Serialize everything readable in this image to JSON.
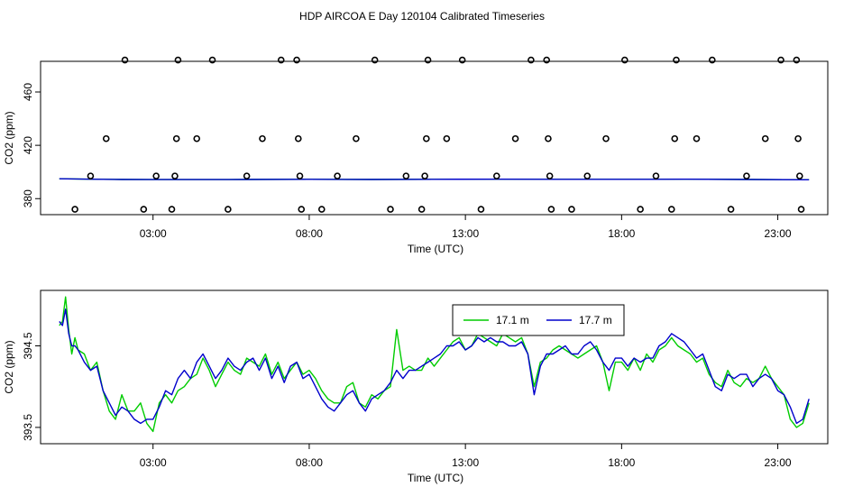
{
  "title": "HDP AIRCOA E  Day 120104  Calibrated Timeseries",
  "chart_data": [
    {
      "type": "scatter",
      "xlabel": "Time (UTC)",
      "ylabel": "CO2 (ppm)",
      "x_unit": "hours UTC",
      "x_ticks": [
        3,
        8,
        13,
        18,
        23
      ],
      "x_tick_labels": [
        "03:00",
        "08:00",
        "13:00",
        "18:00",
        "23:00"
      ],
      "xlim": [
        -0.6,
        24.6
      ],
      "y_ticks": [
        380,
        420,
        460
      ],
      "y_tick_labels": [
        "380",
        "420",
        "460"
      ],
      "ylim": [
        368,
        483
      ],
      "grid": false,
      "points": [
        {
          "x": 0.5,
          "y": 372
        },
        {
          "x": 1.0,
          "y": 397
        },
        {
          "x": 1.5,
          "y": 425
        },
        {
          "x": 2.1,
          "y": 484
        },
        {
          "x": 2.7,
          "y": 372
        },
        {
          "x": 3.1,
          "y": 397
        },
        {
          "x": 3.6,
          "y": 372
        },
        {
          "x": 3.7,
          "y": 397
        },
        {
          "x": 3.75,
          "y": 425
        },
        {
          "x": 3.8,
          "y": 484
        },
        {
          "x": 4.4,
          "y": 425
        },
        {
          "x": 4.9,
          "y": 484
        },
        {
          "x": 5.4,
          "y": 372
        },
        {
          "x": 6.0,
          "y": 397
        },
        {
          "x": 6.5,
          "y": 425
        },
        {
          "x": 7.1,
          "y": 484
        },
        {
          "x": 7.6,
          "y": 484
        },
        {
          "x": 7.65,
          "y": 425
        },
        {
          "x": 7.7,
          "y": 397
        },
        {
          "x": 7.75,
          "y": 372
        },
        {
          "x": 8.4,
          "y": 372
        },
        {
          "x": 8.9,
          "y": 397
        },
        {
          "x": 9.5,
          "y": 425
        },
        {
          "x": 10.1,
          "y": 484
        },
        {
          "x": 10.6,
          "y": 372
        },
        {
          "x": 11.1,
          "y": 397
        },
        {
          "x": 11.6,
          "y": 372
        },
        {
          "x": 11.7,
          "y": 397
        },
        {
          "x": 11.75,
          "y": 425
        },
        {
          "x": 11.8,
          "y": 484
        },
        {
          "x": 12.4,
          "y": 425
        },
        {
          "x": 12.9,
          "y": 484
        },
        {
          "x": 13.5,
          "y": 372
        },
        {
          "x": 14.0,
          "y": 397
        },
        {
          "x": 14.6,
          "y": 425
        },
        {
          "x": 15.1,
          "y": 484
        },
        {
          "x": 15.6,
          "y": 484
        },
        {
          "x": 15.65,
          "y": 425
        },
        {
          "x": 15.7,
          "y": 397
        },
        {
          "x": 15.75,
          "y": 372
        },
        {
          "x": 16.4,
          "y": 372
        },
        {
          "x": 16.9,
          "y": 397
        },
        {
          "x": 17.5,
          "y": 425
        },
        {
          "x": 18.1,
          "y": 484
        },
        {
          "x": 18.6,
          "y": 372
        },
        {
          "x": 19.1,
          "y": 397
        },
        {
          "x": 19.6,
          "y": 372
        },
        {
          "x": 19.7,
          "y": 425
        },
        {
          "x": 19.75,
          "y": 484
        },
        {
          "x": 20.4,
          "y": 425
        },
        {
          "x": 20.9,
          "y": 484
        },
        {
          "x": 21.5,
          "y": 372
        },
        {
          "x": 22.0,
          "y": 397
        },
        {
          "x": 22.6,
          "y": 425
        },
        {
          "x": 23.1,
          "y": 484
        },
        {
          "x": 23.6,
          "y": 484
        },
        {
          "x": 23.65,
          "y": 425
        },
        {
          "x": 23.7,
          "y": 397
        },
        {
          "x": 23.75,
          "y": 372
        }
      ],
      "lines": [
        {
          "color": "#00cc00",
          "x": [
            0,
            0.5,
            1,
            2,
            3,
            4,
            6,
            8,
            10,
            12,
            14,
            16,
            18,
            19,
            20,
            22,
            24
          ],
          "y": [
            394.9,
            394.8,
            394.6,
            394.4,
            394.3,
            394.3,
            394.4,
            394.5,
            394.4,
            394.5,
            394.6,
            394.5,
            394.5,
            394.5,
            394.6,
            394.4,
            394.2
          ]
        },
        {
          "color": "#0000cc",
          "x": [
            0,
            0.5,
            1,
            2,
            3,
            4,
            6,
            8,
            10,
            12,
            14,
            16,
            18,
            19,
            20,
            22,
            24
          ],
          "y": [
            394.9,
            394.8,
            394.6,
            394.4,
            394.3,
            394.3,
            394.4,
            394.5,
            394.4,
            394.5,
            394.6,
            394.5,
            394.5,
            394.5,
            394.6,
            394.4,
            394.2
          ]
        }
      ]
    },
    {
      "type": "line",
      "xlabel": "Time (UTC)",
      "ylabel": "CO2 (ppm)",
      "x_unit": "hours UTC",
      "x_ticks": [
        3,
        8,
        13,
        18,
        23
      ],
      "x_tick_labels": [
        "03:00",
        "08:00",
        "13:00",
        "18:00",
        "23:00"
      ],
      "xlim": [
        -0.6,
        24.6
      ],
      "y_ticks": [
        393.5,
        394.5
      ],
      "y_tick_labels": [
        "393.5",
        "394.5"
      ],
      "ylim": [
        393.3,
        395.18
      ],
      "grid": false,
      "legend_position": "top-right",
      "series": [
        {
          "name": "17.1 m",
          "color": "#00cc00",
          "x": [
            0,
            0.1,
            0.2,
            0.3,
            0.4,
            0.5,
            0.6,
            0.8,
            1.0,
            1.2,
            1.4,
            1.6,
            1.8,
            2.0,
            2.2,
            2.4,
            2.6,
            2.8,
            3.0,
            3.2,
            3.4,
            3.6,
            3.8,
            4.0,
            4.2,
            4.4,
            4.6,
            4.8,
            5.0,
            5.2,
            5.4,
            5.6,
            5.8,
            6.0,
            6.2,
            6.4,
            6.6,
            6.8,
            7.0,
            7.2,
            7.4,
            7.6,
            7.8,
            8.0,
            8.2,
            8.4,
            8.6,
            8.8,
            9.0,
            9.2,
            9.4,
            9.6,
            9.8,
            10.0,
            10.2,
            10.4,
            10.6,
            10.8,
            11.0,
            11.2,
            11.4,
            11.6,
            11.8,
            12.0,
            12.2,
            12.4,
            12.6,
            12.8,
            13.0,
            13.2,
            13.4,
            13.6,
            13.8,
            14.0,
            14.2,
            14.4,
            14.6,
            14.8,
            15.0,
            15.2,
            15.4,
            15.6,
            15.8,
            16.0,
            16.2,
            16.4,
            16.6,
            16.8,
            17.0,
            17.2,
            17.4,
            17.6,
            17.8,
            18.0,
            18.2,
            18.4,
            18.6,
            18.8,
            19.0,
            19.2,
            19.4,
            19.6,
            19.8,
            20.0,
            20.2,
            20.4,
            20.6,
            20.8,
            21.0,
            21.2,
            21.4,
            21.6,
            21.8,
            22.0,
            22.2,
            22.4,
            22.6,
            22.8,
            23.0,
            23.2,
            23.4,
            23.6,
            23.8,
            24.0
          ],
          "y": [
            394.75,
            394.8,
            395.1,
            394.7,
            394.4,
            394.6,
            394.45,
            394.4,
            394.2,
            394.3,
            393.95,
            393.7,
            393.6,
            393.9,
            393.7,
            393.7,
            393.8,
            393.55,
            393.45,
            393.8,
            393.9,
            393.8,
            393.95,
            394.0,
            394.1,
            394.15,
            394.35,
            394.2,
            394.0,
            394.15,
            394.3,
            394.2,
            394.15,
            394.35,
            394.3,
            394.25,
            394.4,
            394.15,
            394.3,
            394.1,
            394.2,
            394.3,
            394.15,
            394.2,
            394.1,
            393.95,
            393.85,
            393.8,
            393.8,
            394.0,
            394.05,
            393.8,
            393.75,
            393.9,
            393.85,
            393.95,
            394.0,
            394.7,
            394.2,
            394.25,
            394.2,
            394.2,
            394.35,
            394.25,
            394.35,
            394.45,
            394.55,
            394.6,
            394.45,
            394.5,
            394.65,
            394.6,
            394.55,
            394.5,
            394.65,
            394.6,
            394.55,
            394.6,
            394.4,
            394.0,
            394.3,
            394.35,
            394.45,
            394.5,
            394.45,
            394.4,
            394.35,
            394.4,
            394.45,
            394.5,
            394.3,
            393.95,
            394.3,
            394.3,
            394.2,
            394.35,
            394.2,
            394.4,
            394.3,
            394.45,
            394.5,
            394.6,
            394.5,
            394.45,
            394.4,
            394.3,
            394.35,
            394.15,
            394.05,
            394.0,
            394.2,
            394.05,
            394.0,
            394.1,
            394.05,
            394.1,
            394.25,
            394.1,
            394.0,
            393.9,
            393.6,
            393.5,
            393.55,
            393.8
          ]
        },
        {
          "name": "17.7 m",
          "color": "#0000cc",
          "x": [
            0,
            0.1,
            0.2,
            0.3,
            0.4,
            0.5,
            0.6,
            0.8,
            1.0,
            1.2,
            1.4,
            1.6,
            1.8,
            2.0,
            2.2,
            2.4,
            2.6,
            2.8,
            3.0,
            3.2,
            3.4,
            3.6,
            3.8,
            4.0,
            4.2,
            4.4,
            4.6,
            4.8,
            5.0,
            5.2,
            5.4,
            5.6,
            5.8,
            6.0,
            6.2,
            6.4,
            6.6,
            6.8,
            7.0,
            7.2,
            7.4,
            7.6,
            7.8,
            8.0,
            8.2,
            8.4,
            8.6,
            8.8,
            9.0,
            9.2,
            9.4,
            9.6,
            9.8,
            10.0,
            10.2,
            10.4,
            10.6,
            10.8,
            11.0,
            11.2,
            11.4,
            11.6,
            11.8,
            12.0,
            12.2,
            12.4,
            12.6,
            12.8,
            13.0,
            13.2,
            13.4,
            13.6,
            13.8,
            14.0,
            14.2,
            14.4,
            14.6,
            14.8,
            15.0,
            15.2,
            15.4,
            15.6,
            15.8,
            16.0,
            16.2,
            16.4,
            16.6,
            16.8,
            17.0,
            17.2,
            17.4,
            17.6,
            17.8,
            18.0,
            18.2,
            18.4,
            18.6,
            18.8,
            19.0,
            19.2,
            19.4,
            19.6,
            19.8,
            20.0,
            20.2,
            20.4,
            20.6,
            20.8,
            21.0,
            21.2,
            21.4,
            21.6,
            21.8,
            22.0,
            22.2,
            22.4,
            22.6,
            22.8,
            23.0,
            23.2,
            23.4,
            23.6,
            23.8,
            24.0
          ],
          "y": [
            394.8,
            394.75,
            394.95,
            394.65,
            394.5,
            394.5,
            394.45,
            394.3,
            394.2,
            394.25,
            393.95,
            393.8,
            393.65,
            393.75,
            393.7,
            393.6,
            393.55,
            393.6,
            393.6,
            393.75,
            393.95,
            393.9,
            394.1,
            394.2,
            394.1,
            394.3,
            394.4,
            394.25,
            394.1,
            394.2,
            394.35,
            394.25,
            394.2,
            394.3,
            394.35,
            394.2,
            394.35,
            394.1,
            394.25,
            394.05,
            394.25,
            394.3,
            394.1,
            394.15,
            394.0,
            393.85,
            393.75,
            393.7,
            393.8,
            393.9,
            393.95,
            393.8,
            393.7,
            393.85,
            393.9,
            393.95,
            394.05,
            394.2,
            394.1,
            394.2,
            394.2,
            394.25,
            394.3,
            394.35,
            394.4,
            394.5,
            394.5,
            394.55,
            394.45,
            394.5,
            394.6,
            394.55,
            394.6,
            394.55,
            394.55,
            394.5,
            394.5,
            394.55,
            394.4,
            393.9,
            394.25,
            394.4,
            394.4,
            394.45,
            394.5,
            394.4,
            394.4,
            394.5,
            394.55,
            394.45,
            394.3,
            394.2,
            394.35,
            394.35,
            394.25,
            394.35,
            394.3,
            394.35,
            394.35,
            394.5,
            394.55,
            394.65,
            394.6,
            394.55,
            394.45,
            394.35,
            394.4,
            394.2,
            394.0,
            393.95,
            394.15,
            394.1,
            394.15,
            394.15,
            394.0,
            394.1,
            394.15,
            394.1,
            393.95,
            393.9,
            393.75,
            393.55,
            393.6,
            393.85
          ]
        }
      ]
    }
  ]
}
